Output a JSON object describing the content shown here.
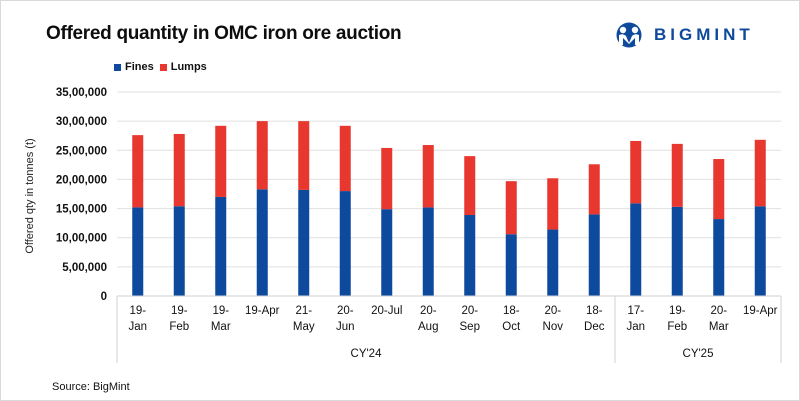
{
  "header": {
    "title": "Offered quantity in OMC iron ore auction",
    "logo_text": "BIGMINT",
    "logo_icon": "bigmint-people-icon"
  },
  "footer": {
    "source": "Source: BigMint"
  },
  "colors": {
    "fines": "#0d4a9e",
    "lumps": "#e8372f",
    "grid": "#e0e0e0",
    "logo": "#0e4a9c"
  },
  "chart_data": {
    "type": "bar",
    "stacked": true,
    "title": "Offered quantity in OMC iron ore auction",
    "xlabel": "",
    "ylabel": "Offered qty in tonnes (t)",
    "ylim": [
      0,
      3500000
    ],
    "yticks": [
      0,
      500000,
      1000000,
      1500000,
      2000000,
      2500000,
      3000000,
      3500000
    ],
    "ytick_labels": [
      "0",
      "5,00,000",
      "10,00,000",
      "15,00,000",
      "20,00,000",
      "25,00,000",
      "30,00,000",
      "35,00,000"
    ],
    "grid": true,
    "legend_position": "top-left",
    "categories": [
      [
        "19-",
        "Jan"
      ],
      [
        "19-",
        "Feb"
      ],
      [
        "19-",
        "Mar"
      ],
      [
        "19-Apr"
      ],
      [
        "21-",
        "May"
      ],
      [
        "20-",
        "Jun"
      ],
      [
        "20-Jul"
      ],
      [
        "20-",
        "Aug"
      ],
      [
        "20-",
        "Sep"
      ],
      [
        "18-",
        "Oct"
      ],
      [
        "20-",
        "Nov"
      ],
      [
        "18-",
        "Dec"
      ],
      [
        "17-",
        "Jan"
      ],
      [
        "19-",
        "Feb"
      ],
      [
        "20-",
        "Mar"
      ],
      [
        "19-Apr"
      ]
    ],
    "groups": [
      {
        "label": "CY'24",
        "count": 12
      },
      {
        "label": "CY'25",
        "count": 4
      }
    ],
    "series": [
      {
        "name": "Fines",
        "values": [
          1520000,
          1540000,
          1700000,
          1830000,
          1820000,
          1800000,
          1490000,
          1520000,
          1390000,
          1060000,
          1140000,
          1400000,
          1590000,
          1530000,
          1320000,
          1540000
        ]
      },
      {
        "name": "Lumps",
        "values": [
          1240000,
          1240000,
          1220000,
          1170000,
          1180000,
          1120000,
          1050000,
          1070000,
          1010000,
          910000,
          880000,
          860000,
          1070000,
          1080000,
          1030000,
          1140000
        ]
      }
    ]
  }
}
